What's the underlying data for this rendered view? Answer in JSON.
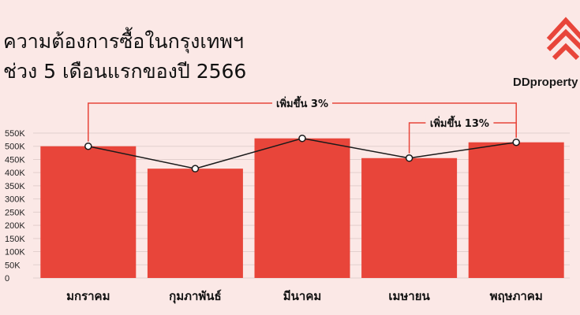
{
  "title": {
    "line1": "ความต้องการซื้อในกรุงเทพฯ",
    "line2": "ช่วง 5 เดือนแรกของปี 2566"
  },
  "brand": {
    "name": "DDproperty",
    "logo_icon": "house-stack-icon",
    "color": "#e8453a"
  },
  "chart_data": {
    "type": "bar",
    "categories": [
      "มกราคม",
      "กุมภาพันธ์",
      "มีนาคม",
      "เมษายน",
      "พฤษภาคม"
    ],
    "values": [
      500000,
      415000,
      530000,
      455000,
      515000
    ],
    "ylim": [
      0,
      550000
    ],
    "yticks": [
      "0",
      "50K",
      "100K",
      "150K",
      "200K",
      "250K",
      "300K",
      "350K",
      "400K",
      "450K",
      "500K",
      "550K"
    ],
    "bar_color": "#e8453a",
    "line_color": "#1a1a1a",
    "grid": true,
    "annotations": [
      {
        "text": "เพิ่มขึ้น 3%",
        "from": 0,
        "to": 4
      },
      {
        "text": "เพิ่มขึ้น 13%",
        "from": 3,
        "to": 4
      }
    ]
  }
}
